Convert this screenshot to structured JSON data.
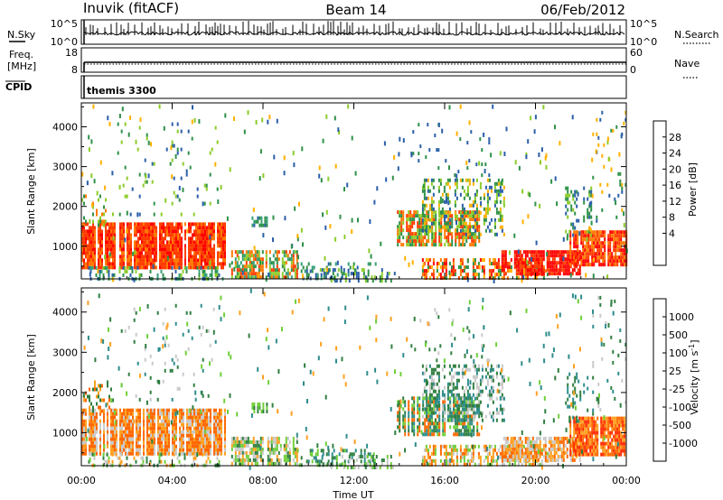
{
  "header": {
    "title": "Inuvik (fitACF)",
    "beam": "Beam 14",
    "date": "06/Feb/2012"
  },
  "panels": {
    "nsky": {
      "label": "N.Sky",
      "ticks": [
        "10^5",
        "10^0"
      ]
    },
    "nsearch": {
      "label": "N.Search",
      "ticks": [
        "10^5",
        "10^0"
      ]
    },
    "freq": {
      "label": "Freq.",
      "unit": "[MHz]",
      "ticks": [
        "18",
        "8"
      ]
    },
    "nave": {
      "label": "Nave",
      "ticks": [
        "60",
        "0"
      ]
    },
    "cpid": {
      "label": "CPID",
      "value": "themis 3300"
    }
  },
  "chart_data": [
    {
      "type": "heatmap",
      "name": "power",
      "ylabel": "Slant Range [km]",
      "yticks": [
        1000,
        2000,
        3000,
        4000
      ],
      "ylim": [
        180,
        4600
      ],
      "colorbar": {
        "label": "Power [dB]",
        "ticks": [
          "28",
          "24",
          "20",
          "16",
          "12",
          "8",
          "4"
        ],
        "colors": [
          "#ff0000",
          "#ff3c00",
          "#ff7a00",
          "#ffb000",
          "#8ccc2a",
          "#2e9148",
          "#36a07a",
          "#2a5fa8",
          "#0014ff"
        ]
      }
    },
    {
      "type": "heatmap",
      "name": "velocity",
      "ylabel": "Slant Range [km]",
      "yticks": [
        1000,
        2000,
        3000,
        4000
      ],
      "ylim": [
        180,
        4600
      ],
      "xlabel": "Time UT",
      "xticks": [
        "00:00",
        "04:00",
        "08:00",
        "12:00",
        "16:00",
        "20:00",
        "00:00"
      ],
      "colorbar": {
        "label": "Velocity [m s",
        "label_sup": "-1",
        "label_end": "]",
        "ticks": [
          "1000",
          "500",
          "100",
          "25",
          "-25",
          "-100",
          "-500",
          "-1000"
        ],
        "colors": [
          "#1830a8",
          "#2e8c8c",
          "#2f7f40",
          "#6fcf3a",
          "#c9c9c9",
          "#ffa020",
          "#ff6800",
          "#ff2a00",
          "#ff0000"
        ]
      }
    }
  ]
}
